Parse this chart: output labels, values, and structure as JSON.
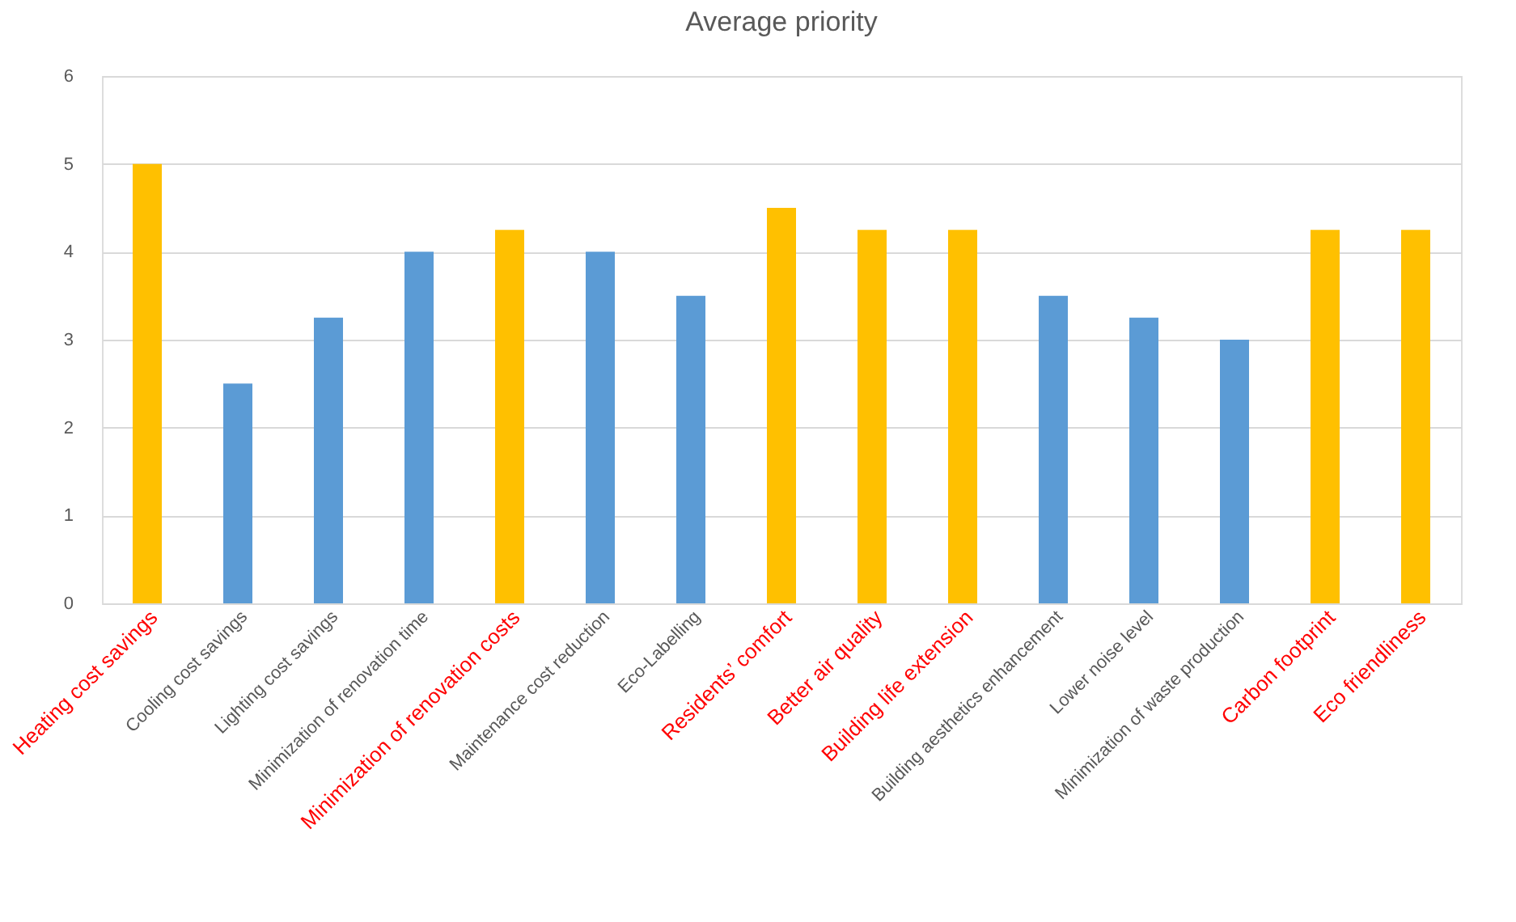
{
  "chart_data": {
    "type": "bar",
    "title": "Average priority",
    "categories": [
      "Heating cost savings",
      "Cooling cost savings",
      "Lighting cost savings",
      "Minimization of renovation time",
      "Minimization of renovation costs",
      "Maintenance cost reduction",
      "Eco-Labelling",
      "Residents’ comfort",
      "Better air quality",
      "Building life extension",
      "Building aesthetics enhancement",
      "Lower noise level",
      "Minimization of waste production",
      "Carbon footprint",
      "Eco friendliness"
    ],
    "values": [
      5,
      2.5,
      3.25,
      4,
      4.25,
      4,
      3.5,
      4.5,
      4.25,
      4.25,
      3.5,
      3.25,
      3,
      4.25,
      4.25
    ],
    "colors": [
      "#ffc000",
      "#5b9bd5",
      "#5b9bd5",
      "#5b9bd5",
      "#ffc000",
      "#5b9bd5",
      "#5b9bd5",
      "#ffc000",
      "#ffc000",
      "#ffc000",
      "#5b9bd5",
      "#5b9bd5",
      "#5b9bd5",
      "#ffc000",
      "#ffc000"
    ],
    "ylim": [
      0,
      6
    ],
    "yticks": [
      0,
      1,
      2,
      3,
      4,
      5,
      6
    ],
    "grid": "y",
    "legend": false
  }
}
